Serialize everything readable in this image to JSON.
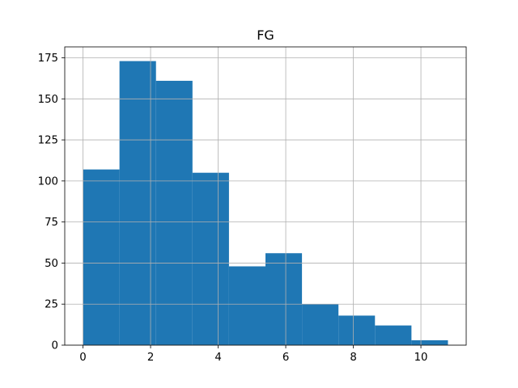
{
  "chart_data": {
    "type": "bar",
    "title": "FG",
    "xlabel": "",
    "ylabel": "",
    "bins": [
      {
        "x0": 0.0,
        "x1": 1.08,
        "count": 107
      },
      {
        "x0": 1.08,
        "x1": 2.16,
        "count": 173
      },
      {
        "x0": 2.16,
        "x1": 3.24,
        "count": 161
      },
      {
        "x0": 3.24,
        "x1": 4.32,
        "count": 105
      },
      {
        "x0": 4.32,
        "x1": 5.4,
        "count": 48
      },
      {
        "x0": 5.4,
        "x1": 6.48,
        "count": 56
      },
      {
        "x0": 6.48,
        "x1": 7.56,
        "count": 25
      },
      {
        "x0": 7.56,
        "x1": 8.64,
        "count": 18
      },
      {
        "x0": 8.64,
        "x1": 9.72,
        "count": 12
      },
      {
        "x0": 9.72,
        "x1": 10.8,
        "count": 3
      }
    ],
    "xlim": [
      -0.54,
      11.34
    ],
    "ylim": [
      0,
      181.65
    ],
    "xticks": [
      0,
      2,
      4,
      6,
      8,
      10
    ],
    "yticks": [
      0,
      25,
      50,
      75,
      100,
      125,
      150,
      175
    ],
    "grid": true,
    "bar_color": "#1f77b4"
  }
}
